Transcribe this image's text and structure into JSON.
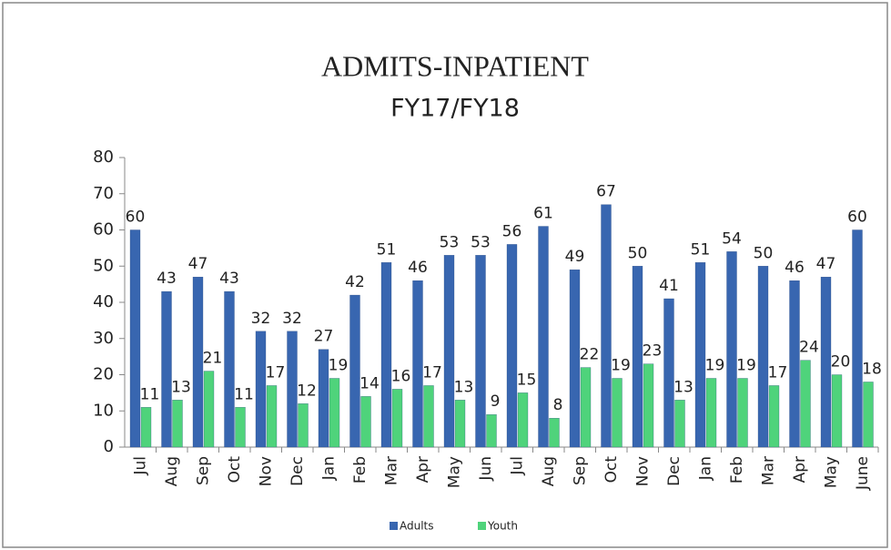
{
  "chart_data": {
    "type": "bar",
    "title": "ADMITS-INPATIENT",
    "subtitle": "FY17/FY18",
    "categories": [
      "Jul",
      "Aug",
      "Sep",
      "Oct",
      "Nov",
      "Dec",
      "Jan",
      "Feb",
      "Mar",
      "Apr",
      "May",
      "Jun",
      "Jul",
      "Aug",
      "Sep",
      "Oct",
      "Nov",
      "Dec",
      "Jan",
      "Feb",
      "Mar",
      "Apr",
      "May",
      "June"
    ],
    "series": [
      {
        "name": "Adults",
        "color": "#3866b0",
        "values": [
          60,
          43,
          47,
          43,
          32,
          32,
          27,
          42,
          51,
          46,
          53,
          53,
          56,
          61,
          49,
          67,
          50,
          41,
          51,
          54,
          50,
          46,
          47,
          60
        ]
      },
      {
        "name": "Youth",
        "color": "#4fd37b",
        "values": [
          11,
          13,
          21,
          11,
          17,
          12,
          19,
          14,
          16,
          17,
          13,
          9,
          15,
          8,
          22,
          19,
          23,
          13,
          19,
          19,
          17,
          24,
          20,
          18
        ]
      }
    ],
    "ylim": [
      0,
      80
    ],
    "yticks": [
      0,
      10,
      20,
      30,
      40,
      50,
      60,
      70,
      80
    ],
    "legend": "bottom"
  }
}
